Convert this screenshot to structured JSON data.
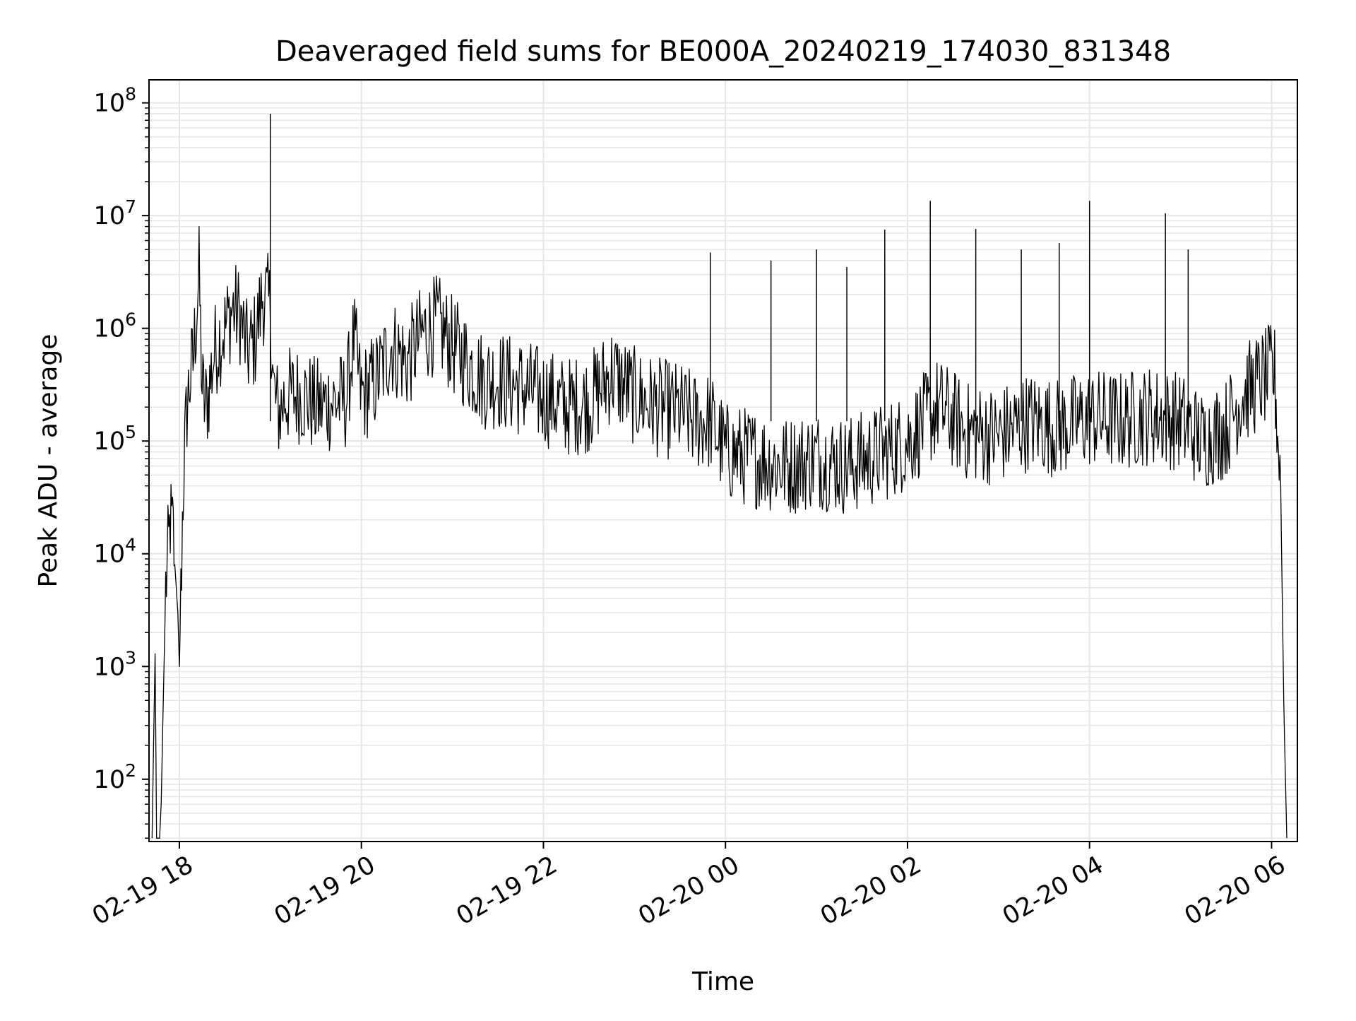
{
  "chart_data": {
    "type": "line",
    "title": "Deaveraged field sums for BE000A_20240219_174030_831348",
    "xlabel": "Time",
    "ylabel": "Peak ADU - average",
    "yscale": "log",
    "ylim": [
      28,
      160000000
    ],
    "xlim": [
      "2024-02-19 17:40",
      "2024-02-20 06:17"
    ],
    "grid": true,
    "line_color": "#000000",
    "grid_color": "#e6e6e6",
    "x_ticks": [
      {
        "t": "2024-02-19 18:00",
        "label": "02-19 18"
      },
      {
        "t": "2024-02-19 20:00",
        "label": "02-19 20"
      },
      {
        "t": "2024-02-19 22:00",
        "label": "02-19 22"
      },
      {
        "t": "2024-02-20 00:00",
        "label": "02-20 00"
      },
      {
        "t": "2024-02-20 02:00",
        "label": "02-20 02"
      },
      {
        "t": "2024-02-20 04:00",
        "label": "02-20 04"
      },
      {
        "t": "2024-02-20 06:00",
        "label": "02-20 06"
      }
    ],
    "y_ticks": [
      {
        "value": 100,
        "base": "10",
        "exp": "2"
      },
      {
        "value": 1000,
        "base": "10",
        "exp": "3"
      },
      {
        "value": 10000,
        "base": "10",
        "exp": "4"
      },
      {
        "value": 100000,
        "base": "10",
        "exp": "5"
      },
      {
        "value": 1000000,
        "base": "10",
        "exp": "6"
      },
      {
        "value": 10000000,
        "base": "10",
        "exp": "7"
      },
      {
        "value": 100000000,
        "base": "10",
        "exp": "8"
      }
    ],
    "series": [
      {
        "x": [
          "2024-02-19 17:42",
          "2024-02-19 17:44",
          "2024-02-19 17:45",
          "2024-02-19 17:47",
          "2024-02-19 17:48",
          "2024-02-19 17:50",
          "2024-02-19 17:51",
          "2024-02-19 17:53",
          "2024-02-19 17:54",
          "2024-02-19 17:56",
          "2024-02-19 17:57",
          "2024-02-19 17:59",
          "2024-02-19 18:00",
          "2024-02-19 18:01",
          "2024-02-19 18:02",
          "2024-02-19 18:03",
          "2024-02-19 18:05",
          "2024-02-19 18:07",
          "2024-02-19 18:09",
          "2024-02-19 18:11",
          "2024-02-19 18:13",
          "2024-02-19 18:15",
          "2024-02-19 18:17",
          "2024-02-19 18:19",
          "2024-02-19 18:21",
          "2024-02-19 18:23",
          "2024-02-19 18:26",
          "2024-02-19 18:30",
          "2024-02-19 18:35",
          "2024-02-19 18:40",
          "2024-02-19 18:45",
          "2024-02-19 18:50",
          "2024-02-19 18:55",
          "2024-02-19 19:00",
          "2024-02-19 19:02",
          "2024-02-19 19:04",
          "2024-02-19 19:06",
          "2024-02-19 19:10",
          "2024-02-19 19:20",
          "2024-02-19 19:30",
          "2024-02-19 19:40",
          "2024-02-19 19:50",
          "2024-02-19 19:55",
          "2024-02-19 20:00",
          "2024-02-19 20:10",
          "2024-02-19 20:20",
          "2024-02-19 20:30",
          "2024-02-19 20:40",
          "2024-02-19 20:50",
          "2024-02-19 21:00",
          "2024-02-19 21:10",
          "2024-02-19 21:20",
          "2024-02-19 21:30",
          "2024-02-19 21:45",
          "2024-02-19 22:00",
          "2024-02-19 22:15",
          "2024-02-19 22:30",
          "2024-02-19 22:45",
          "2024-02-19 23:00",
          "2024-02-19 23:15",
          "2024-02-19 23:30",
          "2024-02-19 23:40",
          "2024-02-19 23:50",
          "2024-02-20 00:00",
          "2024-02-20 00:20",
          "2024-02-20 00:40",
          "2024-02-20 01:00",
          "2024-02-20 01:20",
          "2024-02-20 01:40",
          "2024-02-20 02:00",
          "2024-02-20 02:20",
          "2024-02-20 02:40",
          "2024-02-20 03:00",
          "2024-02-20 03:20",
          "2024-02-20 03:40",
          "2024-02-20 04:00",
          "2024-02-20 04:20",
          "2024-02-20 04:40",
          "2024-02-20 05:00",
          "2024-02-20 05:15",
          "2024-02-20 05:30",
          "2024-02-20 05:40",
          "2024-02-20 05:50",
          "2024-02-20 06:00",
          "2024-02-20 06:02",
          "2024-02-20 06:04",
          "2024-02-20 06:06",
          "2024-02-20 06:08",
          "2024-02-20 06:10"
        ],
        "y": [
          30,
          1300,
          30,
          30,
          60,
          1200,
          5000,
          12000,
          20000,
          15000,
          8000,
          3000,
          1000,
          4000,
          20000,
          60000,
          200000,
          350000,
          500000,
          1200000,
          3000000,
          300000,
          200000,
          250000,
          400000,
          600000,
          800000,
          1000000,
          1500000,
          1300000,
          600000,
          800000,
          2000000,
          1500000,
          300000,
          200000,
          180000,
          250000,
          260000,
          200000,
          220000,
          230000,
          800000,
          250000,
          350000,
          700000,
          500000,
          900000,
          1100000,
          700000,
          500000,
          350000,
          350000,
          300000,
          250000,
          200000,
          220000,
          400000,
          250000,
          200000,
          180000,
          150000,
          150000,
          80000,
          70000,
          60000,
          70000,
          60000,
          75000,
          100000,
          200000,
          120000,
          110000,
          150000,
          130000,
          160000,
          150000,
          170000,
          150000,
          100000,
          130000,
          250000,
          320000,
          400000,
          380000,
          120000,
          40000,
          500,
          30
        ],
        "spikes": [
          {
            "x": "2024-02-19 19:00",
            "y": 80000000
          },
          {
            "x": "2024-02-19 23:50",
            "y": 4700000
          },
          {
            "x": "2024-02-20 00:30",
            "y": 4000000
          },
          {
            "x": "2024-02-20 01:00",
            "y": 5000000
          },
          {
            "x": "2024-02-20 01:20",
            "y": 3500000
          },
          {
            "x": "2024-02-20 01:45",
            "y": 7500000
          },
          {
            "x": "2024-02-20 02:15",
            "y": 13500000
          },
          {
            "x": "2024-02-20 02:45",
            "y": 7600000
          },
          {
            "x": "2024-02-20 03:15",
            "y": 5000000
          },
          {
            "x": "2024-02-20 03:40",
            "y": 5700000
          },
          {
            "x": "2024-02-20 04:00",
            "y": 13500000
          },
          {
            "x": "2024-02-20 04:50",
            "y": 10500000
          },
          {
            "x": "2024-02-20 05:05",
            "y": 5000000
          }
        ]
      }
    ]
  }
}
